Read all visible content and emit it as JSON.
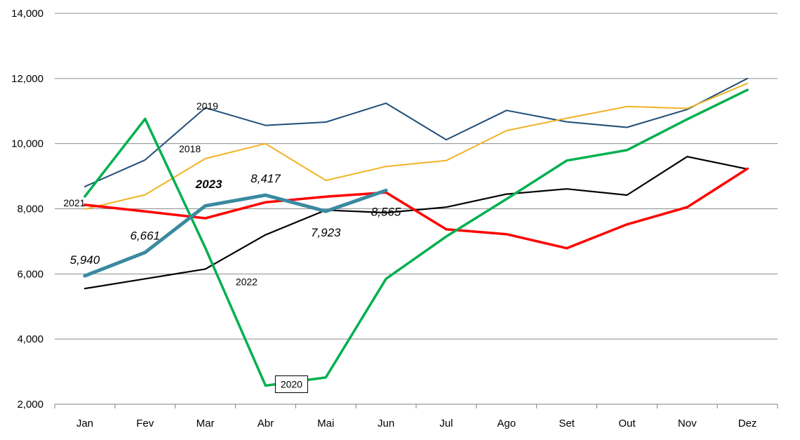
{
  "chart_data": {
    "type": "line",
    "categories": [
      "Jan",
      "Fev",
      "Mar",
      "Abr",
      "Mai",
      "Jun",
      "Jul",
      "Ago",
      "Set",
      "Out",
      "Nov",
      "Dez"
    ],
    "ylim": [
      2000,
      14000
    ],
    "yticks": [
      "2,000",
      "4,000",
      "6,000",
      "8,000",
      "10,000",
      "12,000",
      "14,000"
    ],
    "grid": true,
    "series": [
      {
        "name": "2019",
        "color": "#1f4e79",
        "width": 2,
        "values": [
          8680,
          9500,
          11100,
          10560,
          10660,
          11240,
          10120,
          11020,
          10670,
          10500,
          11050,
          12000
        ]
      },
      {
        "name": "2018",
        "color": "#f0b323",
        "width": 2,
        "values": [
          7990,
          8430,
          9540,
          10000,
          8870,
          9300,
          9480,
          10400,
          10780,
          11140,
          11080,
          11850
        ]
      },
      {
        "name": "2022",
        "color": "#000000",
        "width": 2.2,
        "values": [
          5550,
          5850,
          6150,
          7200,
          7960,
          7880,
          8050,
          8450,
          8610,
          8420,
          9600,
          9220
        ]
      },
      {
        "name": "2021",
        "color": "#ff0000",
        "width": 3.5,
        "values": [
          8120,
          7920,
          7710,
          8200,
          8370,
          8500,
          7370,
          7220,
          6790,
          7520,
          8050,
          9230
        ]
      },
      {
        "name": "2020",
        "color": "#00b050",
        "width": 3.5,
        "values": [
          8380,
          10760,
          6800,
          2570,
          2820,
          5850,
          7150,
          8300,
          9480,
          9800,
          10750,
          11650
        ]
      },
      {
        "name": "2023",
        "color": "#3a8aa0",
        "width": 5,
        "values": [
          5940,
          6661,
          8090,
          8417,
          7923,
          8565,
          null,
          null,
          null,
          null,
          null,
          null
        ]
      }
    ],
    "data_labels": [
      {
        "series": "2023",
        "index": 0,
        "text": "5,940"
      },
      {
        "series": "2023",
        "index": 1,
        "text": "6,661"
      },
      {
        "series": "2023",
        "index": 3,
        "text": "8,417"
      },
      {
        "series": "2023",
        "index": 4,
        "text": "7,923"
      },
      {
        "series": "2023",
        "index": 5,
        "text": "8,565"
      }
    ],
    "series_labels": [
      {
        "series": "2019",
        "text": "2019"
      },
      {
        "series": "2018",
        "text": "2018"
      },
      {
        "series": "2023",
        "text": "2023"
      },
      {
        "series": "2021",
        "text": "2021"
      },
      {
        "series": "2022",
        "text": "2022"
      },
      {
        "series": "2020",
        "text": "2020"
      }
    ]
  }
}
